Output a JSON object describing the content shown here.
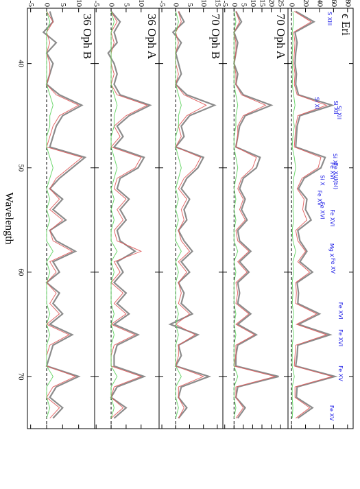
{
  "chart_data": [
    {
      "type": "line",
      "title": "ϵ Eri",
      "x": [
        35,
        36,
        37,
        38,
        39,
        40,
        41,
        42,
        43,
        44,
        45,
        46,
        47,
        48,
        49,
        50,
        51,
        52,
        53,
        54,
        55,
        56,
        57,
        58,
        59,
        60,
        61,
        62,
        63,
        64,
        65,
        66,
        67,
        68,
        69,
        70,
        71,
        72,
        73,
        74
      ],
      "xlim": [
        34.7,
        75
      ],
      "ylim": [
        -5,
        88
      ],
      "yticks": [
        0,
        20,
        40,
        60,
        80
      ],
      "series": [
        {
          "color": "#8c8c8c",
          "values": [
            6,
            32,
            5,
            8,
            6,
            5,
            7,
            6,
            10,
            58,
            12,
            8,
            7,
            6,
            48,
            42,
            18,
            10,
            22,
            20,
            28,
            9,
            12,
            22,
            12,
            30,
            8,
            10,
            9,
            40,
            10,
            55,
            9,
            8,
            6,
            62,
            8,
            7,
            30,
            9
          ]
        },
        {
          "color": "#e05a5a",
          "values": [
            4,
            28,
            3,
            5,
            4,
            3,
            5,
            4,
            8,
            50,
            9,
            6,
            5,
            4,
            42,
            38,
            15,
            8,
            18,
            16,
            22,
            6,
            9,
            20,
            9,
            26,
            6,
            7,
            6,
            36,
            7,
            50,
            6,
            5,
            4,
            58,
            5,
            5,
            26,
            6
          ]
        },
        {
          "color": "#5fd35f",
          "values": [
            2,
            3,
            1,
            2,
            1,
            1,
            2,
            1,
            3,
            5,
            2,
            4,
            2,
            1,
            4,
            6,
            3,
            2,
            3,
            2,
            3,
            1,
            2,
            6,
            2,
            3,
            1,
            2,
            1,
            3,
            1,
            3,
            1,
            1,
            1,
            4,
            1,
            1,
            2,
            1
          ]
        }
      ],
      "annotations": [
        {
          "text": "S XIII",
          "x": 35.7,
          "y": 54
        },
        {
          "text": "Si XI",
          "x": 43.8,
          "y": 36
        },
        {
          "text": "Si XII",
          "x": 44.2,
          "y": 63
        },
        {
          "text": "Si XII",
          "x": 44.7,
          "y": 68
        },
        {
          "text": "Si XI",
          "x": 49.2,
          "y": 62
        },
        {
          "text": "Fe XVI",
          "x": 50.3,
          "y": 58
        },
        {
          "text": "Fe XVI(bl)",
          "x": 50.8,
          "y": 63
        },
        {
          "text": "Si X",
          "x": 51.2,
          "y": 44
        },
        {
          "text": "Fe XV",
          "x": 52.9,
          "y": 40
        },
        {
          "text": "Fe XVI",
          "x": 54.1,
          "y": 44
        },
        {
          "text": "Fe XVI",
          "x": 54.8,
          "y": 58
        },
        {
          "text": "Mg X",
          "x": 57.9,
          "y": 57
        },
        {
          "text": "Fe XV",
          "x": 59.4,
          "y": 59
        },
        {
          "text": "Fe XVI",
          "x": 63.7,
          "y": 70
        },
        {
          "text": "Fe XVI",
          "x": 66.3,
          "y": 70
        },
        {
          "text": "Fe XV",
          "x": 69.7,
          "y": 70
        },
        {
          "text": "Fe XV",
          "x": 73.5,
          "y": 57
        }
      ]
    },
    {
      "type": "line",
      "title": "70 Oph A",
      "x": [
        35,
        36,
        37,
        38,
        39,
        40,
        41,
        42,
        43,
        44,
        45,
        46,
        47,
        48,
        49,
        50,
        51,
        52,
        53,
        54,
        55,
        56,
        57,
        58,
        59,
        60,
        61,
        62,
        63,
        64,
        65,
        66,
        67,
        68,
        69,
        70,
        71,
        72,
        73,
        74
      ],
      "xlim": [
        34.7,
        75
      ],
      "ylim": [
        -6,
        29
      ],
      "yticks": [
        -5,
        0,
        5,
        10,
        15,
        20,
        25
      ],
      "series": [
        {
          "color": "#8c8c8c",
          "values": [
            1,
            4,
            0,
            2,
            1,
            0,
            2,
            1,
            5,
            20,
            6,
            3,
            2,
            1,
            14,
            12,
            5,
            3,
            6,
            4,
            7,
            2,
            3,
            9,
            3,
            8,
            2,
            3,
            2,
            9,
            2,
            12,
            2,
            1,
            1,
            24,
            2,
            1,
            6,
            2
          ]
        },
        {
          "color": "#e05a5a",
          "values": [
            1,
            3,
            0,
            1,
            1,
            0,
            1,
            1,
            4,
            17,
            5,
            2,
            2,
            1,
            12,
            10,
            4,
            2,
            5,
            3,
            6,
            1,
            2,
            8,
            2,
            7,
            1,
            2,
            1,
            8,
            1,
            11,
            1,
            1,
            0,
            22,
            1,
            1,
            5,
            1
          ]
        },
        {
          "color": "#5fd35f",
          "values": [
            0,
            1,
            0,
            0,
            0,
            0,
            0,
            0,
            1,
            2,
            1,
            1,
            0,
            0,
            1,
            2,
            1,
            0,
            1,
            0,
            1,
            0,
            0,
            2,
            0,
            1,
            0,
            0,
            0,
            1,
            0,
            1,
            0,
            0,
            0,
            2,
            0,
            0,
            1,
            0
          ]
        }
      ]
    },
    {
      "type": "line",
      "title": "70 Oph B",
      "x": [
        35,
        36,
        37,
        38,
        39,
        40,
        41,
        42,
        43,
        44,
        45,
        46,
        47,
        48,
        49,
        50,
        51,
        52,
        53,
        54,
        55,
        56,
        57,
        58,
        59,
        60,
        61,
        62,
        63,
        64,
        65,
        66,
        67,
        68,
        69,
        70,
        71,
        72,
        73,
        74
      ],
      "xlim": [
        34.7,
        75
      ],
      "ylim": [
        -6,
        17
      ],
      "yticks": [
        -5,
        0,
        5,
        10,
        15
      ],
      "series": [
        {
          "color": "#8c8c8c",
          "values": [
            1,
            3,
            -1,
            2,
            0,
            1,
            2,
            0,
            4,
            14,
            5,
            2,
            3,
            0,
            10,
            8,
            4,
            2,
            5,
            3,
            4,
            1,
            3,
            6,
            2,
            5,
            1,
            3,
            2,
            6,
            -2,
            8,
            1,
            2,
            0,
            12,
            2,
            1,
            4,
            1
          ]
        },
        {
          "color": "#e05a5a",
          "values": [
            1,
            2,
            0,
            1,
            0,
            0,
            1,
            0,
            3,
            11,
            4,
            1,
            2,
            0,
            9,
            7,
            3,
            1,
            4,
            2,
            3,
            1,
            2,
            5,
            1,
            4,
            1,
            2,
            1,
            5,
            0,
            7,
            1,
            1,
            0,
            10,
            1,
            1,
            3,
            1
          ]
        },
        {
          "color": "#5fd35f",
          "values": [
            0,
            1,
            0,
            0,
            0,
            0,
            0,
            0,
            1,
            2,
            1,
            1,
            0,
            0,
            1,
            2,
            1,
            0,
            1,
            0,
            1,
            0,
            0,
            2,
            0,
            1,
            0,
            0,
            0,
            1,
            0,
            1,
            0,
            0,
            0,
            2,
            0,
            0,
            1,
            0
          ]
        }
      ]
    },
    {
      "type": "line",
      "title": "36 Oph A",
      "x": [
        35,
        36,
        37,
        38,
        39,
        40,
        41,
        42,
        43,
        44,
        45,
        46,
        47,
        48,
        49,
        50,
        51,
        52,
        53,
        54,
        55,
        56,
        57,
        58,
        59,
        60,
        61,
        62,
        63,
        64,
        65,
        66,
        67,
        68,
        69,
        70,
        71,
        72,
        73,
        74
      ],
      "xlim": [
        34.7,
        75
      ],
      "ylim": [
        -5.5,
        16
      ],
      "yticks": [
        -5,
        0,
        5,
        10
      ],
      "series": [
        {
          "color": "#8c8c8c",
          "values": [
            0,
            3,
            1,
            2,
            -1,
            1,
            2,
            1,
            3,
            13,
            6,
            2,
            4,
            1,
            11,
            9,
            3,
            2,
            6,
            3,
            5,
            2,
            3,
            8,
            2,
            4,
            1,
            5,
            2,
            6,
            1,
            9,
            2,
            1,
            1,
            11,
            2,
            0,
            5,
            1
          ]
        },
        {
          "color": "#e05a5a",
          "values": [
            0,
            2,
            0,
            1,
            0,
            0,
            1,
            0,
            2,
            12,
            5,
            1,
            3,
            0,
            10,
            8,
            2,
            1,
            5,
            2,
            4,
            1,
            2,
            10,
            1,
            3,
            0,
            4,
            1,
            5,
            0,
            8,
            1,
            0,
            0,
            10,
            1,
            0,
            4,
            0
          ]
        },
        {
          "color": "#5fd35f",
          "values": [
            0,
            1,
            0,
            0,
            0,
            0,
            0,
            0,
            1,
            2,
            1,
            1,
            0,
            0,
            1,
            2,
            1,
            0,
            1,
            0,
            1,
            0,
            0,
            2,
            0,
            1,
            0,
            0,
            0,
            1,
            0,
            1,
            0,
            0,
            0,
            2,
            0,
            0,
            1,
            0
          ]
        }
      ]
    },
    {
      "type": "line",
      "title": "36 Oph B",
      "xlabel": "Wavelength",
      "x": [
        35,
        36,
        37,
        38,
        39,
        40,
        41,
        42,
        43,
        44,
        45,
        46,
        47,
        48,
        49,
        50,
        51,
        52,
        53,
        54,
        55,
        56,
        57,
        58,
        59,
        60,
        61,
        62,
        63,
        64,
        65,
        66,
        67,
        68,
        69,
        70,
        71,
        72,
        73,
        74
      ],
      "xlim": [
        34.7,
        75
      ],
      "xticks": [
        40,
        50,
        60,
        70
      ],
      "ylim": [
        -6,
        15
      ],
      "yticks": [
        -5,
        0,
        5,
        10
      ],
      "series": [
        {
          "color": "#8c8c8c",
          "values": [
            1,
            2,
            -1,
            3,
            0,
            2,
            1,
            0,
            4,
            11,
            5,
            3,
            2,
            1,
            12,
            8,
            4,
            1,
            5,
            2,
            6,
            1,
            3,
            9,
            2,
            4,
            0,
            4,
            2,
            5,
            1,
            8,
            2,
            1,
            0,
            10,
            3,
            1,
            5,
            2
          ]
        },
        {
          "color": "#e05a5a",
          "values": [
            0,
            2,
            0,
            1,
            0,
            1,
            1,
            0,
            3,
            10,
            4,
            2,
            1,
            0,
            11,
            7,
            3,
            1,
            4,
            1,
            5,
            1,
            2,
            8,
            1,
            3,
            0,
            3,
            1,
            4,
            0,
            7,
            1,
            0,
            0,
            9,
            2,
            0,
            4,
            1
          ]
        },
        {
          "color": "#5fd35f",
          "values": [
            0,
            1,
            0,
            0,
            0,
            0,
            0,
            0,
            1,
            2,
            1,
            1,
            0,
            0,
            1,
            2,
            1,
            0,
            1,
            0,
            1,
            0,
            0,
            2,
            0,
            1,
            0,
            0,
            0,
            1,
            0,
            1,
            0,
            0,
            0,
            2,
            0,
            0,
            1,
            0
          ]
        }
      ]
    }
  ]
}
